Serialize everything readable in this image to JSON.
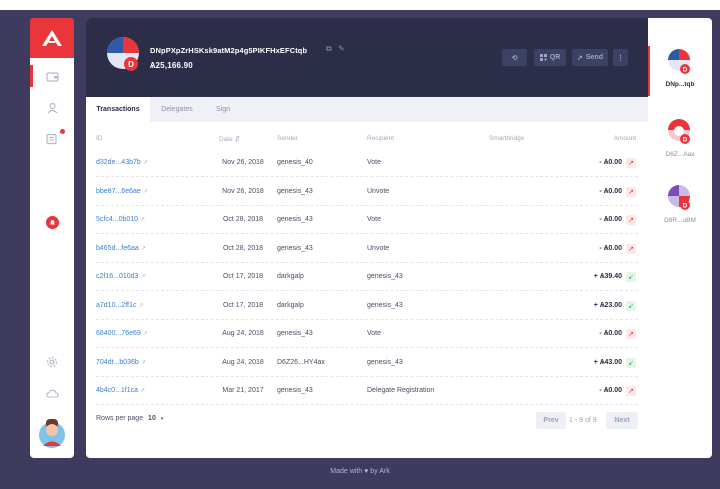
{
  "sidebar": {
    "items": [
      {
        "name": "wallets",
        "icon": "wallet-icon"
      },
      {
        "name": "contacts",
        "icon": "contact-icon"
      },
      {
        "name": "announcements",
        "icon": "announcements-icon"
      },
      {
        "name": "notifications",
        "icon": "bell-icon"
      },
      {
        "name": "settings",
        "icon": "gear-icon"
      },
      {
        "name": "network",
        "icon": "cloud-icon"
      }
    ],
    "accent": "#e8363b"
  },
  "wallet": {
    "address": "DNpPXpZrHSKsk9atM2p4g5PIKFHxEFCtqb",
    "balance": "Ѧ25,166.90"
  },
  "header_buttons": {
    "refresh": "⟲",
    "qr": "QR",
    "send": "Send",
    "more": "⋮"
  },
  "tabs": [
    "Transactions",
    "Delegates",
    "Sign"
  ],
  "table": {
    "columns": [
      "ID",
      "Date",
      "Sender",
      "Recipient",
      "Smartbridge",
      "Amount"
    ],
    "rows": [
      {
        "id": "d32de...43b7b",
        "date": "Nov 26, 2018",
        "sender": "genesis_40",
        "recipient": "Vote",
        "smartbridge": "",
        "amount": "- Ѧ0.00",
        "direction": "out"
      },
      {
        "id": "bbe87...6e6ae",
        "date": "Nov 26, 2018",
        "sender": "genesis_43",
        "recipient": "Unvote",
        "smartbridge": "",
        "amount": "- Ѧ0.00",
        "direction": "out"
      },
      {
        "id": "5cfc4...0b010",
        "date": "Oct 28, 2018",
        "sender": "genesis_43",
        "recipient": "Vote",
        "smartbridge": "",
        "amount": "- Ѧ0.00",
        "direction": "out"
      },
      {
        "id": "b465d...fe6aa",
        "date": "Oct 28, 2018",
        "sender": "genesis_43",
        "recipient": "Unvote",
        "smartbridge": "",
        "amount": "- Ѧ0.00",
        "direction": "out"
      },
      {
        "id": "c2f16...010d3",
        "date": "Oct 17, 2018",
        "sender": "darkgalp",
        "recipient": "genesis_43",
        "smartbridge": "",
        "amount": "+ Ѧ39.40",
        "direction": "in"
      },
      {
        "id": "a7d10...2ff1c",
        "date": "Oct 17, 2018",
        "sender": "darkgalp",
        "recipient": "genesis_43",
        "smartbridge": "",
        "amount": "+ Ѧ23.00",
        "direction": "in"
      },
      {
        "id": "68400...76e69",
        "date": "Aug 24, 2018",
        "sender": "genesis_43",
        "recipient": "Vote",
        "smartbridge": "",
        "amount": "- Ѧ0.00",
        "direction": "out"
      },
      {
        "id": "704dt...b036b",
        "date": "Aug 24, 2018",
        "sender": "D6Z26...HY4ax",
        "recipient": "genesis_43",
        "smartbridge": "",
        "amount": "+ Ѧ43.00",
        "direction": "in"
      },
      {
        "id": "4b4c0...1f1ca",
        "date": "Mar 21, 2017",
        "sender": "genesis_43",
        "recipient": "Delegate Registration",
        "smartbridge": "",
        "amount": "- Ѧ0.00",
        "direction": "out"
      }
    ]
  },
  "pagination": {
    "rows_per_page_label": "Rows per page",
    "rows_per_page_value": "10",
    "prev": "Prev",
    "info": "1 - 9 of 9",
    "next": "Next"
  },
  "wallet_list": [
    {
      "label": "DNp...tqb",
      "active": true
    },
    {
      "label": "D6Z...Aax",
      "active": false
    },
    {
      "label": "D9R...uBM",
      "active": false
    }
  ],
  "footer": {
    "made_with": "Made with ♥ by Ark"
  }
}
